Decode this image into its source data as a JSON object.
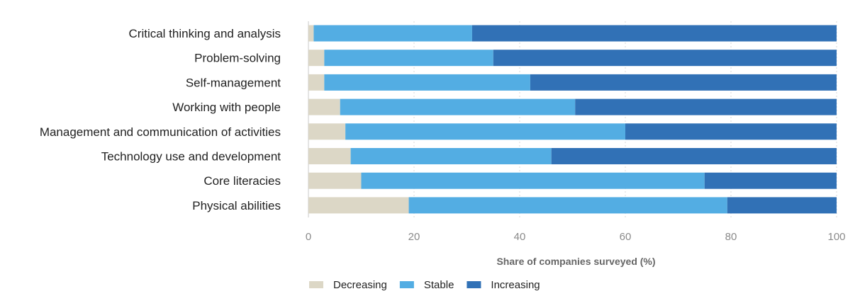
{
  "chart_data": {
    "type": "bar",
    "orientation": "horizontal",
    "stacked": true,
    "title": "",
    "xlabel": "Share of companies surveyed (%)",
    "ylabel": "",
    "xlim": [
      0,
      100
    ],
    "xticks": [
      0,
      20,
      40,
      60,
      80,
      100
    ],
    "grid": true,
    "legend_position": "bottom",
    "categories": [
      "Critical thinking and analysis",
      "Problem-solving",
      "Self-management",
      "Working with people",
      "Management and communication of activities",
      "Technology use and development",
      "Core literacies",
      "Physical abilities"
    ],
    "series": [
      {
        "name": "Decreasing",
        "color": "#dcd7c6",
        "values": [
          1,
          3,
          3,
          6,
          7,
          8,
          10,
          19
        ]
      },
      {
        "name": "Stable",
        "color": "#53ade3",
        "values": [
          30,
          32,
          39,
          44.5,
          53,
          38,
          65,
          60.3
        ]
      },
      {
        "name": "Increasing",
        "color": "#3171b6",
        "values": [
          69,
          65,
          58,
          49.5,
          40,
          54,
          25,
          20.7
        ]
      }
    ]
  }
}
